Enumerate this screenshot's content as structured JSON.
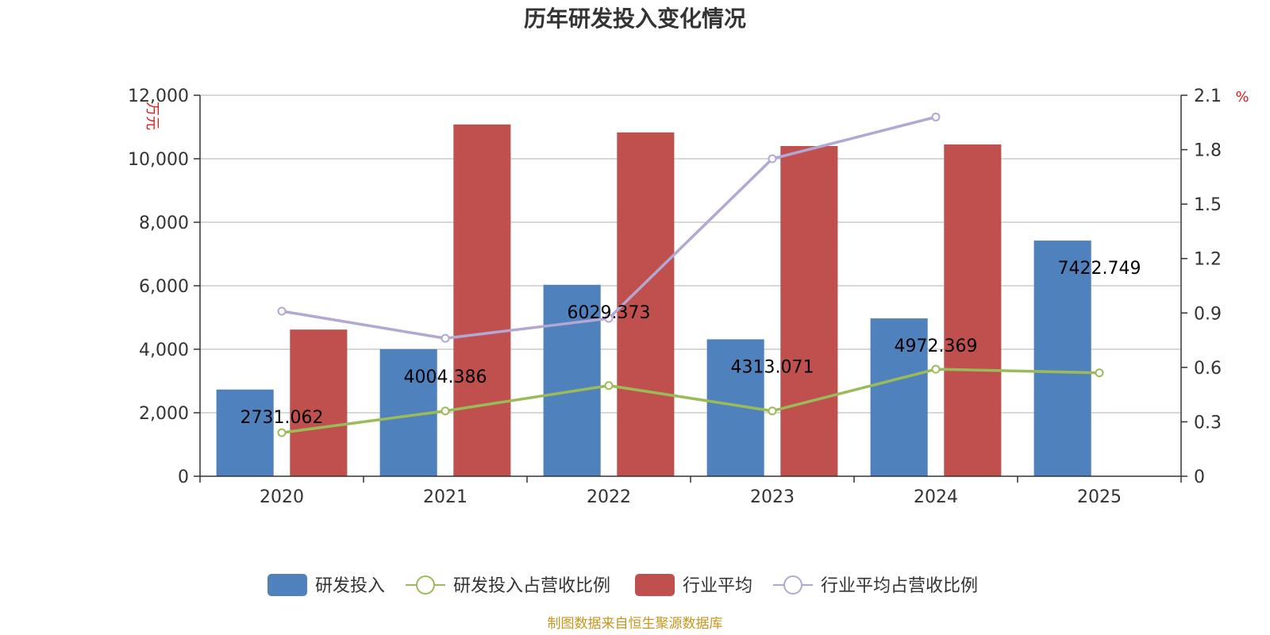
{
  "chart_data": {
    "type": "bar",
    "title": "历年研发投入变化情况",
    "categories": [
      "2020",
      "2021",
      "2022",
      "2023",
      "2024",
      "2025"
    ],
    "y_left": {
      "unit": "万元",
      "ylim": [
        0,
        12000
      ],
      "ticks": [
        "0",
        "2,000",
        "4,000",
        "6,000",
        "8,000",
        "10,000",
        "12,000"
      ]
    },
    "y_right": {
      "unit": "%",
      "ylim": [
        0,
        2.1
      ],
      "ticks": [
        "0",
        "0.3",
        "0.6",
        "0.9",
        "1.2",
        "1.5",
        "1.8",
        "2.1"
      ]
    },
    "series": [
      {
        "name": "研发投入",
        "type": "bar",
        "axis": "left",
        "color": "#4f81bd",
        "values": [
          2731.062,
          4004.386,
          6029.373,
          4313.071,
          4972.369,
          7422.749
        ],
        "labels": [
          "2731.062",
          "4004.386",
          "6029.373",
          "4313.071",
          "4972.369",
          "7422.749"
        ]
      },
      {
        "name": "研发投入占营收比例",
        "type": "line",
        "axis": "right",
        "color": "#9bbb59",
        "values": [
          0.24,
          0.36,
          0.5,
          0.36,
          0.59,
          0.57
        ]
      },
      {
        "name": "行业平均",
        "type": "bar",
        "axis": "left",
        "color": "#c0504d",
        "values": [
          4620,
          11080,
          10830,
          10400,
          10450,
          null
        ]
      },
      {
        "name": "行业平均占营收比例",
        "type": "line",
        "axis": "right",
        "color": "#b3a7d3",
        "values": [
          0.91,
          0.76,
          0.87,
          1.75,
          1.98,
          null
        ]
      }
    ],
    "legend_position": "bottom",
    "grid": true
  },
  "footer": {
    "source": "制图数据来自恒生聚源数据库"
  }
}
